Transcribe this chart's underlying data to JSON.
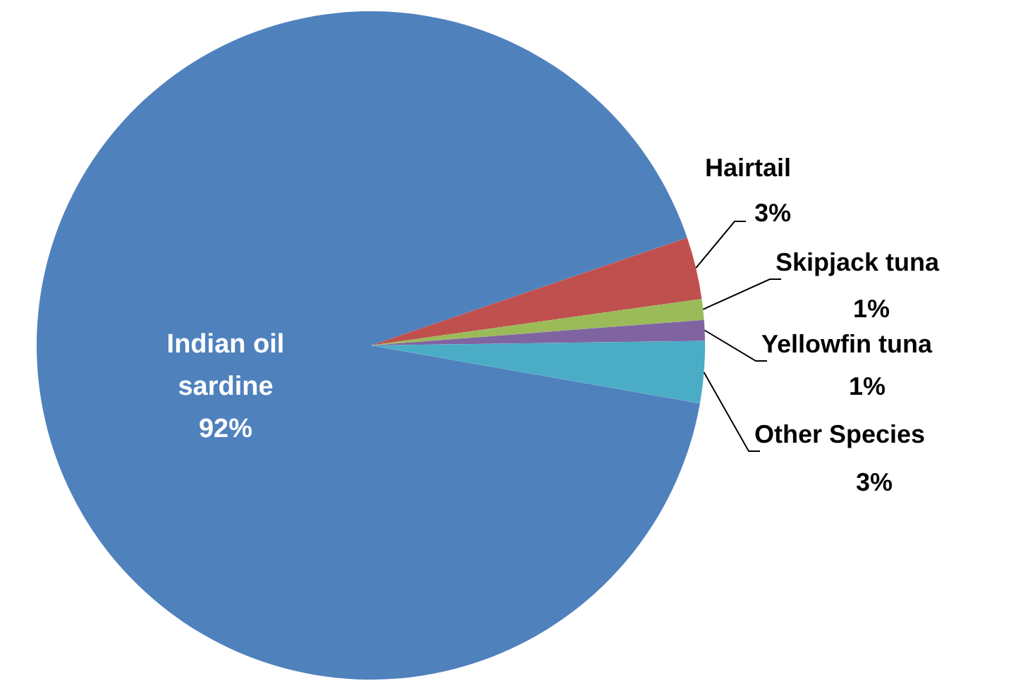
{
  "chart_data": {
    "type": "pie",
    "categories": [
      "Indian oil sardine",
      "Hairtail",
      "Skipjack tuna",
      "Yellowfin  tuna",
      "Other Species"
    ],
    "values": [
      92,
      3,
      1,
      1,
      3
    ],
    "colors": [
      "#4f81bd",
      "#c0504d",
      "#9bbb59",
      "#8064a2",
      "#4bacc6"
    ],
    "value_labels": [
      "92%",
      "3%",
      "1%",
      "1%",
      "3%"
    ],
    "legend": false
  }
}
